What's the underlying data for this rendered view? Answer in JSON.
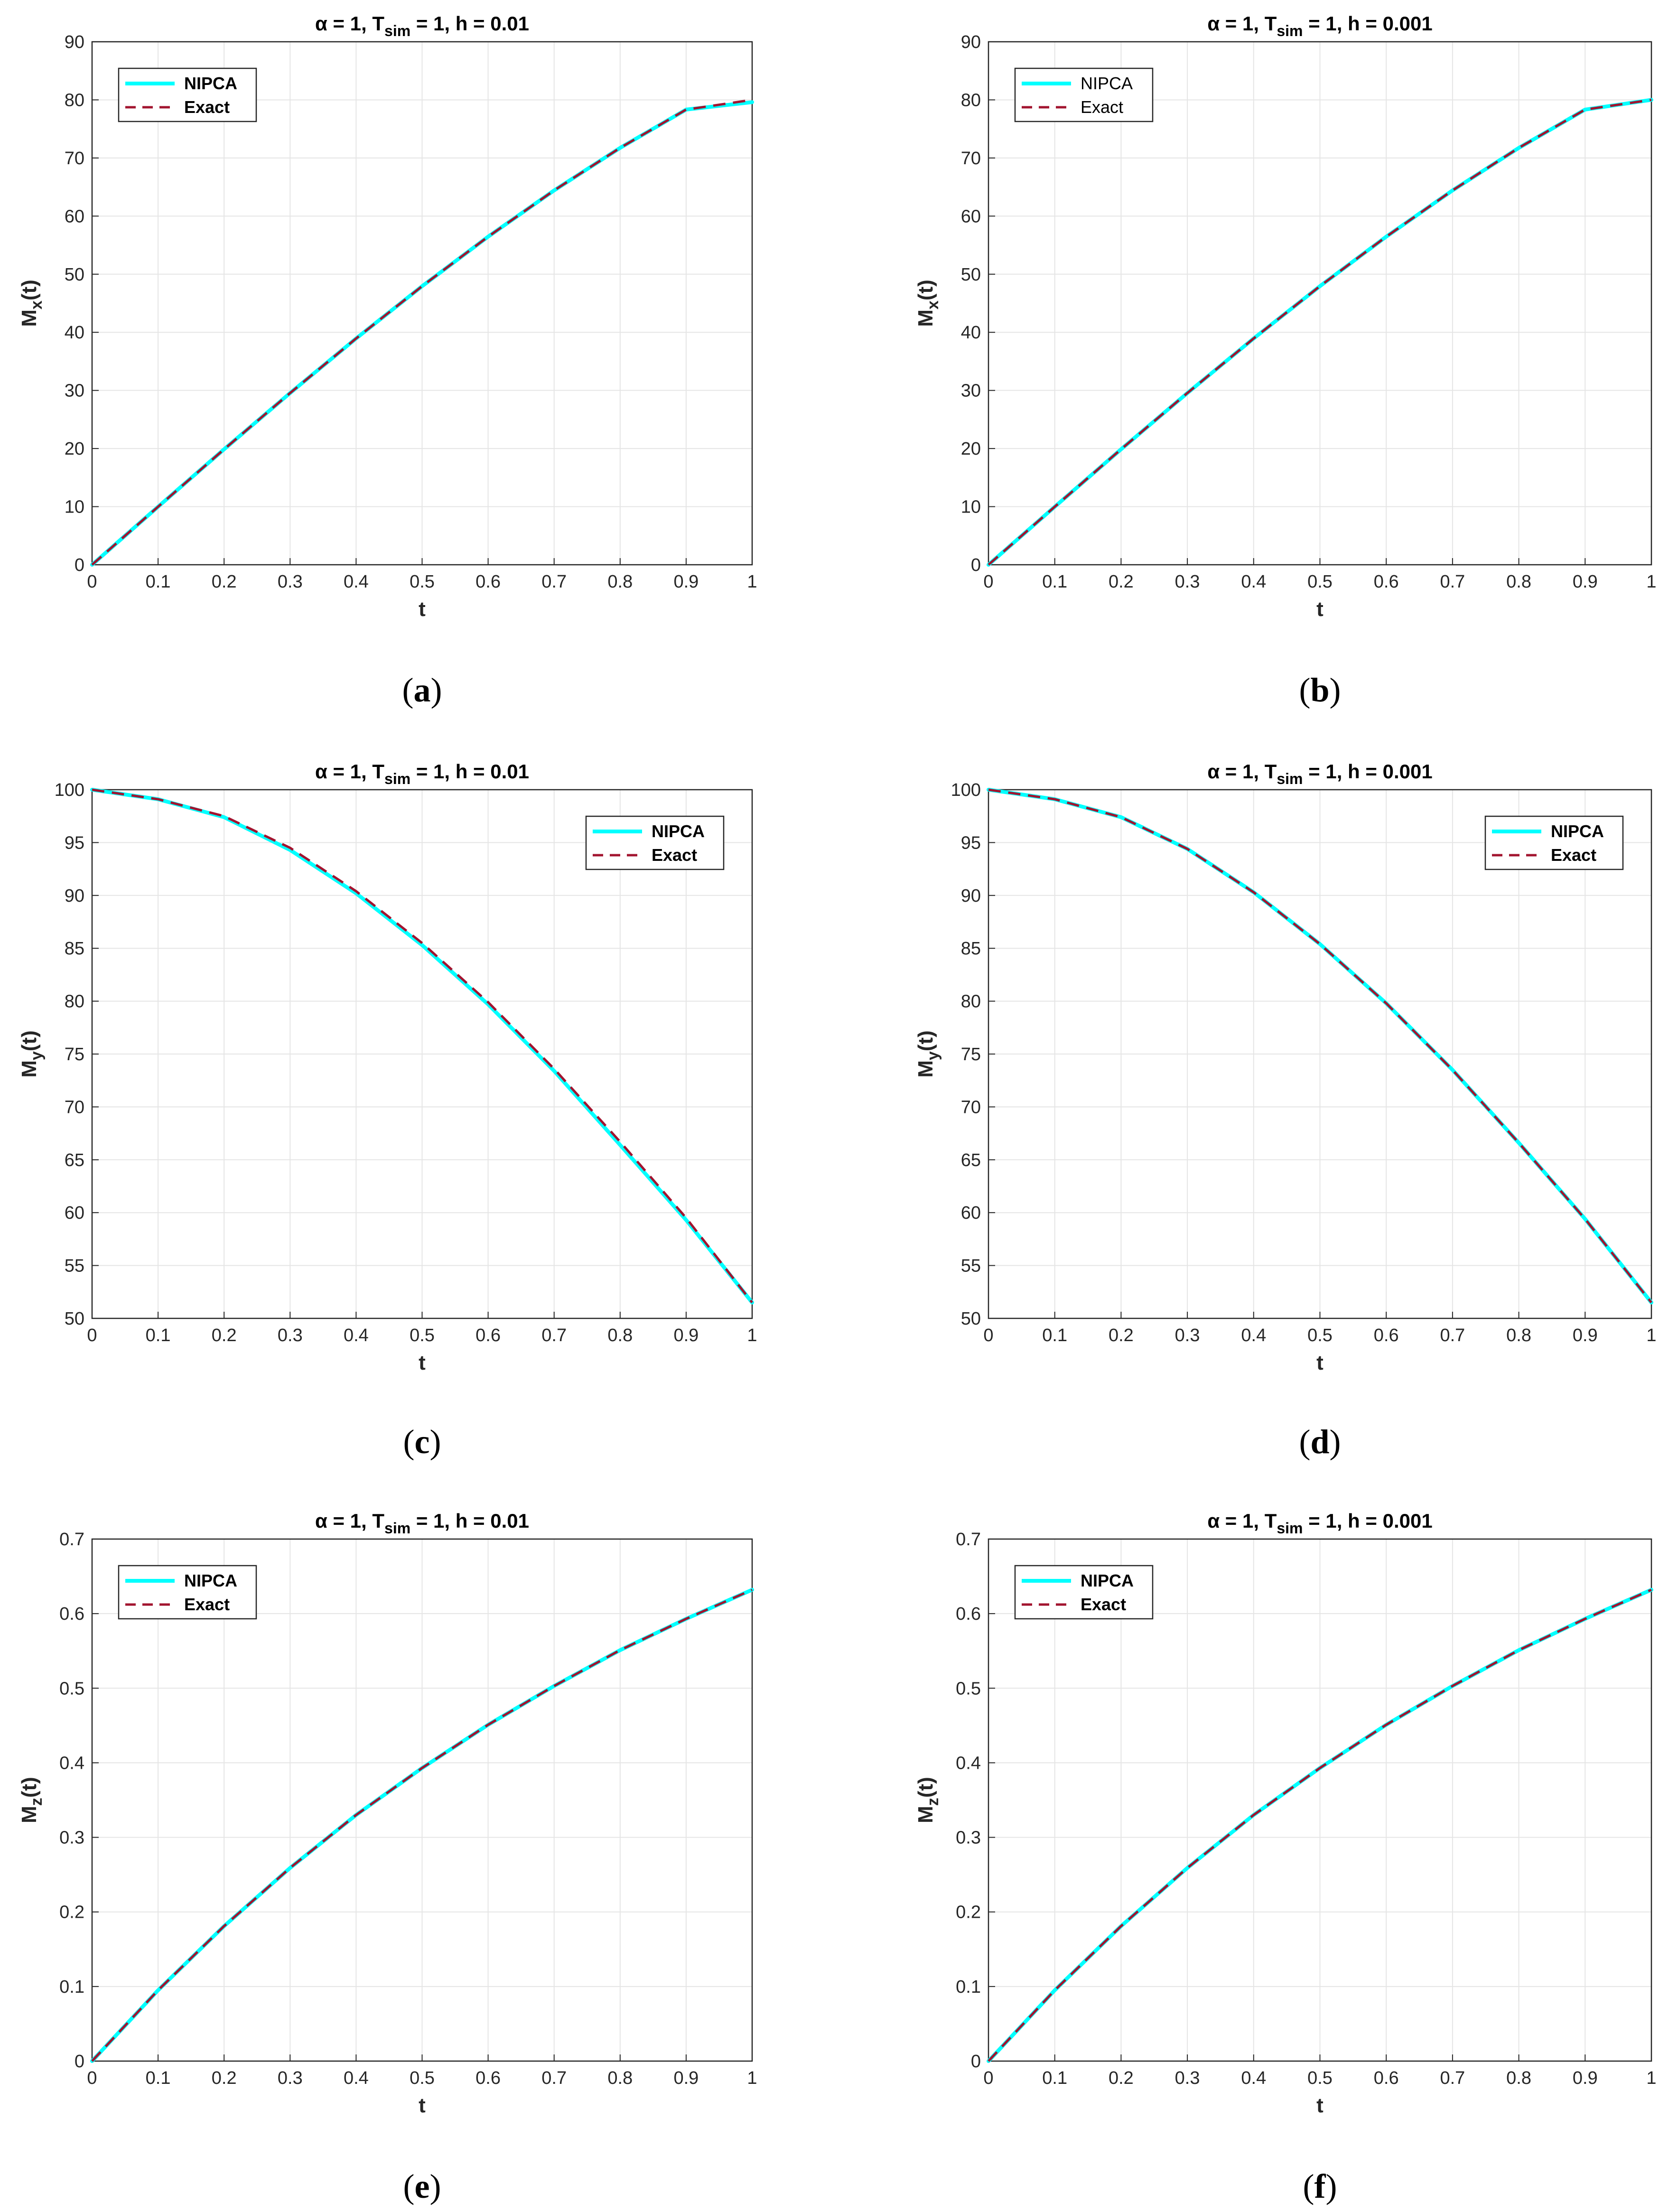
{
  "colors": {
    "nipca": "#00ffff",
    "exact": "#a2142f",
    "grid": "#e5e5e5",
    "axis": "#262626"
  },
  "chart_data": [
    {
      "id": "a",
      "type": "line",
      "title": {
        "main": "α = 1, T",
        "sub": "sim",
        "rest": " = 1, h = 0.01"
      },
      "xlabel": "t",
      "ylabel": {
        "main": "M",
        "sub": "x",
        "rest": "(t)"
      },
      "caption": {
        "open": "(",
        "letter": "a",
        "close": ")"
      },
      "xlim": [
        0,
        1
      ],
      "ylim": [
        0,
        90
      ],
      "xticks": [
        "0",
        "0.1",
        "0.2",
        "0.3",
        "0.4",
        "0.5",
        "0.6",
        "0.7",
        "0.8",
        "0.9",
        "1"
      ],
      "yticks": [
        "0",
        "10",
        "20",
        "30",
        "40",
        "50",
        "60",
        "70",
        "80",
        "90"
      ],
      "legend": {
        "position": "top-left",
        "bold": true,
        "entries": [
          "NIPCA",
          "Exact"
        ]
      },
      "x": [
        0,
        0.1,
        0.2,
        0.3,
        0.4,
        0.5,
        0.6,
        0.7,
        0.8,
        0.9,
        1
      ],
      "series": [
        {
          "name": "NIPCA",
          "values": [
            0,
            9.99,
            19.87,
            29.55,
            38.94,
            47.94,
            56.46,
            64.42,
            71.74,
            78.33,
            79.6
          ]
        },
        {
          "name": "Exact",
          "values": [
            0,
            9.98,
            19.87,
            29.55,
            38.94,
            47.94,
            56.46,
            64.42,
            71.74,
            78.33,
            80
          ]
        }
      ]
    },
    {
      "id": "b",
      "type": "line",
      "title": {
        "main": "α = 1, T",
        "sub": "sim",
        "rest": " = 1, h = 0.001"
      },
      "xlabel": "t",
      "ylabel": {
        "main": "M",
        "sub": "x",
        "rest": "(t)"
      },
      "caption": {
        "open": "(",
        "letter": "b",
        "close": ")"
      },
      "xlim": [
        0,
        1
      ],
      "ylim": [
        0,
        90
      ],
      "xticks": [
        "0",
        "0.1",
        "0.2",
        "0.3",
        "0.4",
        "0.5",
        "0.6",
        "0.7",
        "0.8",
        "0.9",
        "1"
      ],
      "yticks": [
        "0",
        "10",
        "20",
        "30",
        "40",
        "50",
        "60",
        "70",
        "80",
        "90"
      ],
      "legend": {
        "position": "top-left",
        "bold": false,
        "entries": [
          "NIPCA",
          "Exact"
        ]
      },
      "x": [
        0,
        0.1,
        0.2,
        0.3,
        0.4,
        0.5,
        0.6,
        0.7,
        0.8,
        0.9,
        1
      ],
      "series": [
        {
          "name": "NIPCA",
          "values": [
            0,
            9.98,
            19.87,
            29.55,
            38.94,
            47.94,
            56.46,
            64.42,
            71.74,
            78.33,
            80
          ]
        },
        {
          "name": "Exact",
          "values": [
            0,
            9.98,
            19.87,
            29.55,
            38.94,
            47.94,
            56.46,
            64.42,
            71.74,
            78.33,
            80
          ]
        }
      ]
    },
    {
      "id": "c",
      "type": "line",
      "title": {
        "main": "α = 1, T",
        "sub": "sim",
        "rest": " = 1, h = 0.01"
      },
      "xlabel": "t",
      "ylabel": {
        "main": "M",
        "sub": "y",
        "rest": "(t)"
      },
      "caption": {
        "open": "(",
        "letter": "c",
        "close": ")"
      },
      "xlim": [
        0,
        1
      ],
      "ylim": [
        50,
        100
      ],
      "xticks": [
        "0",
        "0.1",
        "0.2",
        "0.3",
        "0.4",
        "0.5",
        "0.6",
        "0.7",
        "0.8",
        "0.9",
        "1"
      ],
      "yticks": [
        "50",
        "55",
        "60",
        "65",
        "70",
        "75",
        "80",
        "85",
        "90",
        "95",
        "100"
      ],
      "legend": {
        "position": "top-right",
        "bold": true,
        "entries": [
          "NIPCA",
          "Exact"
        ]
      },
      "x": [
        0,
        0.1,
        0.2,
        0.3,
        0.4,
        0.5,
        0.6,
        0.7,
        0.8,
        0.9,
        1
      ],
      "series": [
        {
          "name": "NIPCA",
          "values": [
            100,
            99.1,
            97.4,
            94.3,
            90.2,
            85.3,
            79.7,
            73.4,
            66.4,
            59.3,
            51.5
          ]
        },
        {
          "name": "Exact",
          "values": [
            100,
            99.1,
            97.5,
            94.5,
            90.4,
            85.5,
            79.9,
            73.6,
            66.7,
            59.5,
            51.5
          ]
        }
      ]
    },
    {
      "id": "d",
      "type": "line",
      "title": {
        "main": "α = 1, T",
        "sub": "sim",
        "rest": " = 1, h = 0.001"
      },
      "xlabel": "t",
      "ylabel": {
        "main": "M",
        "sub": "y",
        "rest": "(t)"
      },
      "caption": {
        "open": "(",
        "letter": "d",
        "close": ")"
      },
      "xlim": [
        0,
        1
      ],
      "ylim": [
        50,
        100
      ],
      "xticks": [
        "0",
        "0.1",
        "0.2",
        "0.3",
        "0.4",
        "0.5",
        "0.6",
        "0.7",
        "0.8",
        "0.9",
        "1"
      ],
      "yticks": [
        "50",
        "55",
        "60",
        "65",
        "70",
        "75",
        "80",
        "85",
        "90",
        "95",
        "100"
      ],
      "legend": {
        "position": "top-right",
        "bold": true,
        "entries": [
          "NIPCA",
          "Exact"
        ]
      },
      "x": [
        0,
        0.1,
        0.2,
        0.3,
        0.4,
        0.5,
        0.6,
        0.7,
        0.8,
        0.9,
        1
      ],
      "series": [
        {
          "name": "NIPCA",
          "values": [
            100,
            99.1,
            97.4,
            94.4,
            90.3,
            85.4,
            79.8,
            73.5,
            66.6,
            59.4,
            51.5
          ]
        },
        {
          "name": "Exact",
          "values": [
            100,
            99.1,
            97.4,
            94.4,
            90.3,
            85.4,
            79.8,
            73.5,
            66.6,
            59.4,
            51.5
          ]
        }
      ]
    },
    {
      "id": "e",
      "type": "line",
      "title": {
        "main": "α = 1, T",
        "sub": "sim",
        "rest": " = 1, h = 0.01"
      },
      "xlabel": "t",
      "ylabel": {
        "main": "M",
        "sub": "z",
        "rest": "(t)"
      },
      "caption": {
        "open": "(",
        "letter": "e",
        "close": ")"
      },
      "xlim": [
        0,
        1
      ],
      "ylim": [
        0,
        0.7
      ],
      "xticks": [
        "0",
        "0.1",
        "0.2",
        "0.3",
        "0.4",
        "0.5",
        "0.6",
        "0.7",
        "0.8",
        "0.9",
        "1"
      ],
      "yticks": [
        "0",
        "0.1",
        "0.2",
        "0.3",
        "0.4",
        "0.5",
        "0.6",
        "0.7"
      ],
      "legend": {
        "position": "top-left",
        "bold": true,
        "entries": [
          "NIPCA",
          "Exact"
        ]
      },
      "x": [
        0,
        0.1,
        0.2,
        0.3,
        0.4,
        0.5,
        0.6,
        0.7,
        0.8,
        0.9,
        1
      ],
      "series": [
        {
          "name": "NIPCA",
          "values": [
            0,
            0.095,
            0.181,
            0.259,
            0.33,
            0.393,
            0.451,
            0.503,
            0.551,
            0.593,
            0.632
          ]
        },
        {
          "name": "Exact",
          "values": [
            0,
            0.095,
            0.181,
            0.259,
            0.33,
            0.393,
            0.451,
            0.503,
            0.551,
            0.593,
            0.632
          ]
        }
      ]
    },
    {
      "id": "f",
      "type": "line",
      "title": {
        "main": "α = 1, T",
        "sub": "sim",
        "rest": " = 1, h = 0.001"
      },
      "xlabel": "t",
      "ylabel": {
        "main": "M",
        "sub": "z",
        "rest": "(t)"
      },
      "caption": {
        "open": "(",
        "letter": "f",
        "close": ")"
      },
      "xlim": [
        0,
        1
      ],
      "ylim": [
        0,
        0.7
      ],
      "xticks": [
        "0",
        "0.1",
        "0.2",
        "0.3",
        "0.4",
        "0.5",
        "0.6",
        "0.7",
        "0.8",
        "0.9",
        "1"
      ],
      "yticks": [
        "0",
        "0.1",
        "0.2",
        "0.3",
        "0.4",
        "0.5",
        "0.6",
        "0.7"
      ],
      "legend": {
        "position": "top-left",
        "bold": true,
        "entries": [
          "NIPCA",
          "Exact"
        ]
      },
      "x": [
        0,
        0.1,
        0.2,
        0.3,
        0.4,
        0.5,
        0.6,
        0.7,
        0.8,
        0.9,
        1
      ],
      "series": [
        {
          "name": "NIPCA",
          "values": [
            0,
            0.095,
            0.181,
            0.259,
            0.33,
            0.393,
            0.451,
            0.503,
            0.551,
            0.593,
            0.632
          ]
        },
        {
          "name": "Exact",
          "values": [
            0,
            0.095,
            0.181,
            0.259,
            0.33,
            0.393,
            0.451,
            0.503,
            0.551,
            0.593,
            0.632
          ]
        }
      ]
    }
  ]
}
